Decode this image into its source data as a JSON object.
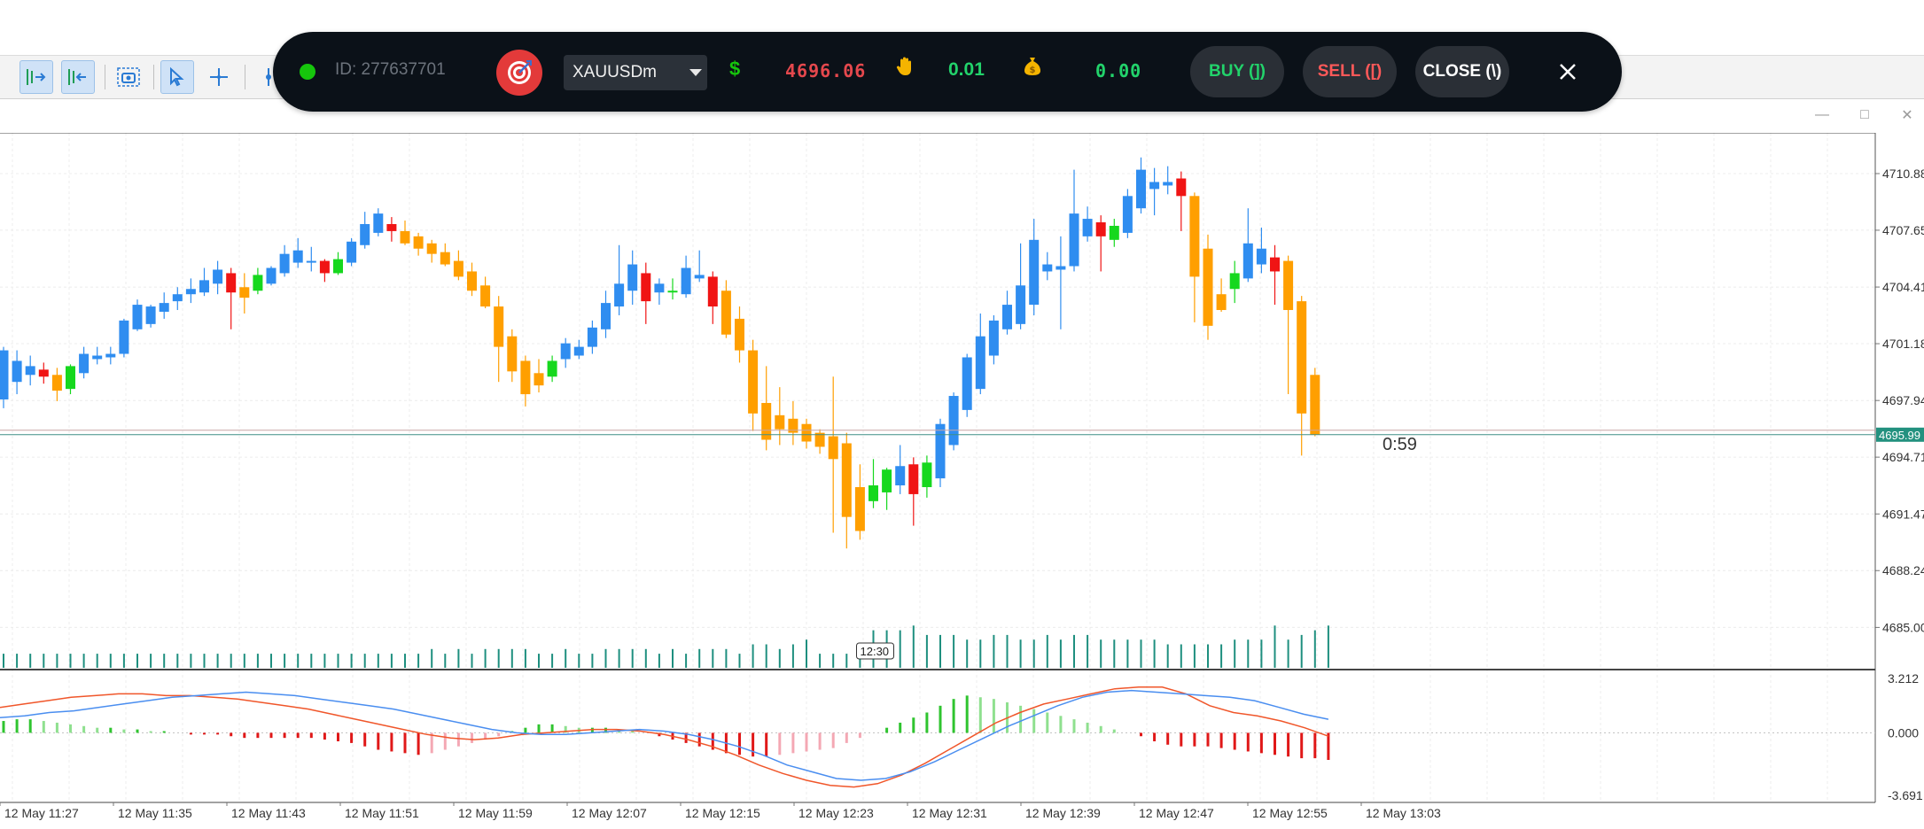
{
  "trade_panel": {
    "status_color": "#16c60c",
    "account_id": "ID: 277637701",
    "target_icon": "target-icon",
    "symbol": "XAUUSDm",
    "dollar_icon": "$",
    "price": "4696.06",
    "hand_icon": "hand-icon",
    "lot": "0.01",
    "bag_icon": "money-bag-icon",
    "profit": "0.00",
    "buy_label": "BUY (])",
    "sell_label": "SELL ([)",
    "close_label": "CLOSE (\\)",
    "close_icon": "close-icon"
  },
  "chart": {
    "price_axis_labels": [
      "4710.88",
      "4707.65",
      "4704.41",
      "4701.18",
      "4697.94",
      "4694.71",
      "4691.47",
      "4688.24",
      "4685.00"
    ],
    "current_price_label": "4695.99",
    "countdown": "0:59",
    "time_axis_labels": [
      "12 May 11:27",
      "12 May 11:35",
      "12 May 11:43",
      "12 May 11:51",
      "12 May 11:59",
      "12 May 12:07",
      "12 May 12:15",
      "12 May 12:23",
      "12 May 12:31",
      "12 May 12:39",
      "12 May 12:47",
      "12 May 12:55",
      "12 May 13:03"
    ],
    "crosshair_time_label": "12:30",
    "oscillator_labels": [
      "3.212",
      "0.000",
      "-3.691"
    ],
    "colors": {
      "bull": "#2f8df0",
      "bear": "#ff9f00",
      "bull_strong": "#16d81e",
      "bear_strong": "#f01414",
      "volume": "#1e8f7f",
      "signal_line": "#f0562a",
      "macd_line": "#4a8ef0"
    }
  },
  "chart_data": {
    "type": "candlestick",
    "ylim": [
      4683.0,
      4713.0
    ],
    "candles": [
      {
        "o": 4698.0,
        "h": 4701.0,
        "l": 4697.5,
        "c": 4700.8,
        "k": "b"
      },
      {
        "o": 4699.0,
        "h": 4700.8,
        "l": 4698.3,
        "c": 4700.2,
        "k": "b"
      },
      {
        "o": 4699.4,
        "h": 4700.5,
        "l": 4698.8,
        "c": 4699.9,
        "k": "b"
      },
      {
        "o": 4699.7,
        "h": 4700.1,
        "l": 4698.9,
        "c": 4699.3,
        "k": "S"
      },
      {
        "o": 4699.4,
        "h": 4699.8,
        "l": 4697.9,
        "c": 4698.5,
        "k": "o"
      },
      {
        "o": 4698.6,
        "h": 4700.0,
        "l": 4698.3,
        "c": 4699.9,
        "k": "G"
      },
      {
        "o": 4699.5,
        "h": 4701.0,
        "l": 4699.2,
        "c": 4700.6,
        "k": "b"
      },
      {
        "o": 4700.5,
        "h": 4701.0,
        "l": 4700.0,
        "c": 4700.3,
        "k": "b"
      },
      {
        "o": 4700.4,
        "h": 4701.0,
        "l": 4700.0,
        "c": 4700.6,
        "k": "b"
      },
      {
        "o": 4700.6,
        "h": 4702.6,
        "l": 4700.4,
        "c": 4702.5,
        "k": "b"
      },
      {
        "o": 4702.0,
        "h": 4703.7,
        "l": 4701.9,
        "c": 4703.4,
        "k": "b"
      },
      {
        "o": 4702.3,
        "h": 4703.4,
        "l": 4702.1,
        "c": 4703.3,
        "k": "b"
      },
      {
        "o": 4703.0,
        "h": 4704.1,
        "l": 4702.6,
        "c": 4703.5,
        "k": "b"
      },
      {
        "o": 4703.6,
        "h": 4704.4,
        "l": 4703.1,
        "c": 4704.0,
        "k": "b"
      },
      {
        "o": 4704.0,
        "h": 4704.9,
        "l": 4703.5,
        "c": 4704.3,
        "k": "b"
      },
      {
        "o": 4704.1,
        "h": 4705.5,
        "l": 4703.9,
        "c": 4704.8,
        "k": "b"
      },
      {
        "o": 4704.6,
        "h": 4705.9,
        "l": 4704.0,
        "c": 4705.4,
        "k": "b"
      },
      {
        "o": 4705.2,
        "h": 4705.5,
        "l": 4702.0,
        "c": 4704.1,
        "k": "S"
      },
      {
        "o": 4704.4,
        "h": 4705.2,
        "l": 4702.9,
        "c": 4703.8,
        "k": "o"
      },
      {
        "o": 4704.2,
        "h": 4705.5,
        "l": 4704.0,
        "c": 4705.1,
        "k": "G"
      },
      {
        "o": 4704.6,
        "h": 4705.6,
        "l": 4704.5,
        "c": 4705.5,
        "k": "b"
      },
      {
        "o": 4705.2,
        "h": 4706.8,
        "l": 4705.0,
        "c": 4706.3,
        "k": "b"
      },
      {
        "o": 4705.8,
        "h": 4707.2,
        "l": 4705.5,
        "c": 4706.5,
        "k": "b"
      },
      {
        "o": 4705.9,
        "h": 4706.7,
        "l": 4705.3,
        "c": 4705.9,
        "k": "b"
      },
      {
        "o": 4705.9,
        "h": 4706.0,
        "l": 4704.7,
        "c": 4705.2,
        "k": "S"
      },
      {
        "o": 4705.2,
        "h": 4706.4,
        "l": 4705.1,
        "c": 4706.0,
        "k": "G"
      },
      {
        "o": 4705.8,
        "h": 4707.2,
        "l": 4705.6,
        "c": 4707.0,
        "k": "b"
      },
      {
        "o": 4706.8,
        "h": 4708.7,
        "l": 4706.6,
        "c": 4708.0,
        "k": "b"
      },
      {
        "o": 4707.5,
        "h": 4708.9,
        "l": 4707.3,
        "c": 4708.6,
        "k": "b"
      },
      {
        "o": 4708.0,
        "h": 4708.4,
        "l": 4707.0,
        "c": 4707.6,
        "k": "S"
      },
      {
        "o": 4707.6,
        "h": 4708.2,
        "l": 4706.8,
        "c": 4706.9,
        "k": "o"
      },
      {
        "o": 4707.3,
        "h": 4707.5,
        "l": 4706.2,
        "c": 4706.6,
        "k": "o"
      },
      {
        "o": 4706.9,
        "h": 4707.1,
        "l": 4705.8,
        "c": 4706.3,
        "k": "o"
      },
      {
        "o": 4706.4,
        "h": 4706.9,
        "l": 4705.6,
        "c": 4705.7,
        "k": "o"
      },
      {
        "o": 4705.9,
        "h": 4706.5,
        "l": 4704.8,
        "c": 4705.0,
        "k": "o"
      },
      {
        "o": 4705.3,
        "h": 4705.8,
        "l": 4703.9,
        "c": 4704.2,
        "k": "o"
      },
      {
        "o": 4704.5,
        "h": 4705.0,
        "l": 4703.2,
        "c": 4703.3,
        "k": "o"
      },
      {
        "o": 4703.3,
        "h": 4703.9,
        "l": 4699.0,
        "c": 4701.0,
        "k": "o"
      },
      {
        "o": 4701.6,
        "h": 4702.0,
        "l": 4699.0,
        "c": 4699.6,
        "k": "o"
      },
      {
        "o": 4700.2,
        "h": 4700.5,
        "l": 4697.6,
        "c": 4698.3,
        "k": "o"
      },
      {
        "o": 4699.5,
        "h": 4700.3,
        "l": 4698.4,
        "c": 4698.8,
        "k": "o"
      },
      {
        "o": 4699.3,
        "h": 4700.5,
        "l": 4699.0,
        "c": 4700.2,
        "k": "G"
      },
      {
        "o": 4700.3,
        "h": 4701.5,
        "l": 4699.8,
        "c": 4701.2,
        "k": "b"
      },
      {
        "o": 4700.5,
        "h": 4701.4,
        "l": 4700.3,
        "c": 4701.0,
        "k": "b"
      },
      {
        "o": 4701.0,
        "h": 4702.5,
        "l": 4700.6,
        "c": 4702.1,
        "k": "b"
      },
      {
        "o": 4702.0,
        "h": 4704.2,
        "l": 4701.5,
        "c": 4703.5,
        "k": "b"
      },
      {
        "o": 4703.3,
        "h": 4706.8,
        "l": 4702.8,
        "c": 4704.6,
        "k": "b"
      },
      {
        "o": 4704.2,
        "h": 4706.5,
        "l": 4703.4,
        "c": 4705.7,
        "k": "b"
      },
      {
        "o": 4705.2,
        "h": 4705.8,
        "l": 4702.3,
        "c": 4703.6,
        "k": "S"
      },
      {
        "o": 4704.1,
        "h": 4704.9,
        "l": 4703.4,
        "c": 4704.6,
        "k": "b"
      },
      {
        "o": 4704.2,
        "h": 4704.9,
        "l": 4703.7,
        "c": 4704.2,
        "k": "G"
      },
      {
        "o": 4704.0,
        "h": 4706.2,
        "l": 4703.8,
        "c": 4705.5,
        "k": "b"
      },
      {
        "o": 4704.9,
        "h": 4706.5,
        "l": 4704.7,
        "c": 4705.1,
        "k": "b"
      },
      {
        "o": 4705.0,
        "h": 4705.3,
        "l": 4702.3,
        "c": 4703.3,
        "k": "S"
      },
      {
        "o": 4704.2,
        "h": 4704.8,
        "l": 4701.5,
        "c": 4701.7,
        "k": "o"
      },
      {
        "o": 4702.6,
        "h": 4703.3,
        "l": 4700.1,
        "c": 4700.8,
        "k": "o"
      },
      {
        "o": 4700.8,
        "h": 4701.4,
        "l": 4696.2,
        "c": 4697.2,
        "k": "o"
      },
      {
        "o": 4697.8,
        "h": 4699.9,
        "l": 4695.1,
        "c": 4695.7,
        "k": "o"
      },
      {
        "o": 4697.1,
        "h": 4698.7,
        "l": 4695.4,
        "c": 4696.3,
        "k": "o"
      },
      {
        "o": 4696.9,
        "h": 4697.9,
        "l": 4695.4,
        "c": 4696.1,
        "k": "o"
      },
      {
        "o": 4696.6,
        "h": 4696.9,
        "l": 4695.2,
        "c": 4695.6,
        "k": "o"
      },
      {
        "o": 4696.1,
        "h": 4696.3,
        "l": 4694.9,
        "c": 4695.3,
        "k": "o"
      },
      {
        "o": 4695.9,
        "h": 4699.3,
        "l": 4690.4,
        "c": 4694.6,
        "k": "o"
      },
      {
        "o": 4695.5,
        "h": 4696.1,
        "l": 4689.5,
        "c": 4691.3,
        "k": "o"
      },
      {
        "o": 4693.0,
        "h": 4694.3,
        "l": 4690.0,
        "c": 4690.5,
        "k": "o"
      },
      {
        "o": 4692.2,
        "h": 4694.6,
        "l": 4691.8,
        "c": 4693.1,
        "k": "G"
      },
      {
        "o": 4692.7,
        "h": 4694.1,
        "l": 4691.7,
        "c": 4694.0,
        "k": "G"
      },
      {
        "o": 4693.1,
        "h": 4695.4,
        "l": 4692.6,
        "c": 4694.2,
        "k": "b"
      },
      {
        "o": 4694.3,
        "h": 4694.7,
        "l": 4690.8,
        "c": 4692.6,
        "k": "S"
      },
      {
        "o": 4693.0,
        "h": 4694.8,
        "l": 4692.4,
        "c": 4694.4,
        "k": "G"
      },
      {
        "o": 4693.5,
        "h": 4696.9,
        "l": 4693.0,
        "c": 4696.6,
        "k": "b"
      },
      {
        "o": 4695.4,
        "h": 4698.4,
        "l": 4695.1,
        "c": 4698.2,
        "k": "b"
      },
      {
        "o": 4697.4,
        "h": 4700.6,
        "l": 4697.0,
        "c": 4700.4,
        "k": "b"
      },
      {
        "o": 4698.6,
        "h": 4702.9,
        "l": 4698.3,
        "c": 4701.6,
        "k": "b"
      },
      {
        "o": 4700.5,
        "h": 4702.8,
        "l": 4700.0,
        "c": 4702.5,
        "k": "b"
      },
      {
        "o": 4702.0,
        "h": 4704.2,
        "l": 4701.7,
        "c": 4703.4,
        "k": "b"
      },
      {
        "o": 4702.3,
        "h": 4706.9,
        "l": 4702.0,
        "c": 4704.5,
        "k": "b"
      },
      {
        "o": 4703.4,
        "h": 4708.3,
        "l": 4702.8,
        "c": 4707.1,
        "k": "b"
      },
      {
        "o": 4705.3,
        "h": 4706.4,
        "l": 4704.8,
        "c": 4705.7,
        "k": "b"
      },
      {
        "o": 4705.4,
        "h": 4707.3,
        "l": 4702.0,
        "c": 4705.6,
        "k": "b"
      },
      {
        "o": 4705.6,
        "h": 4711.1,
        "l": 4705.3,
        "c": 4708.6,
        "k": "b"
      },
      {
        "o": 4707.3,
        "h": 4709.0,
        "l": 4707.0,
        "c": 4708.3,
        "k": "b"
      },
      {
        "o": 4708.1,
        "h": 4708.5,
        "l": 4705.3,
        "c": 4707.3,
        "k": "S"
      },
      {
        "o": 4707.1,
        "h": 4708.3,
        "l": 4706.7,
        "c": 4707.9,
        "k": "G"
      },
      {
        "o": 4707.5,
        "h": 4710.0,
        "l": 4707.2,
        "c": 4709.6,
        "k": "b"
      },
      {
        "o": 4708.9,
        "h": 4711.8,
        "l": 4708.6,
        "c": 4711.1,
        "k": "b"
      },
      {
        "o": 4710.0,
        "h": 4711.2,
        "l": 4708.5,
        "c": 4710.4,
        "k": "b"
      },
      {
        "o": 4710.4,
        "h": 4711.3,
        "l": 4709.7,
        "c": 4710.2,
        "k": "b"
      },
      {
        "o": 4710.6,
        "h": 4711.0,
        "l": 4707.6,
        "c": 4709.6,
        "k": "S"
      },
      {
        "o": 4709.6,
        "h": 4709.8,
        "l": 4702.4,
        "c": 4705.0,
        "k": "o"
      },
      {
        "o": 4706.6,
        "h": 4707.4,
        "l": 4701.4,
        "c": 4702.2,
        "k": "o"
      },
      {
        "o": 4704.0,
        "h": 4704.9,
        "l": 4703.0,
        "c": 4703.1,
        "k": "o"
      },
      {
        "o": 4704.3,
        "h": 4705.9,
        "l": 4703.5,
        "c": 4705.2,
        "k": "G"
      },
      {
        "o": 4704.9,
        "h": 4708.9,
        "l": 4704.7,
        "c": 4706.9,
        "k": "b"
      },
      {
        "o": 4705.7,
        "h": 4707.8,
        "l": 4705.2,
        "c": 4706.6,
        "k": "b"
      },
      {
        "o": 4706.1,
        "h": 4706.8,
        "l": 4703.4,
        "c": 4705.3,
        "k": "S"
      },
      {
        "o": 4705.9,
        "h": 4706.2,
        "l": 4698.3,
        "c": 4703.1,
        "k": "o"
      },
      {
        "o": 4703.6,
        "h": 4703.9,
        "l": 4694.8,
        "c": 4697.2,
        "k": "o"
      },
      {
        "o": 4699.4,
        "h": 4699.8,
        "l": 4695.9,
        "c": 4696.0,
        "k": "o"
      }
    ],
    "volume": [
      3,
      3,
      3,
      3,
      3,
      3,
      3,
      3,
      3,
      3,
      3,
      3,
      3,
      3,
      3,
      3,
      3,
      3,
      3,
      3,
      3,
      3,
      3,
      3,
      3,
      3,
      3,
      3,
      3,
      3,
      3,
      3,
      4,
      3,
      4,
      3,
      4,
      4,
      4,
      4,
      3,
      3,
      4,
      3,
      3,
      4,
      4,
      4,
      4,
      3,
      4,
      3,
      4,
      4,
      4,
      3,
      5,
      5,
      4,
      5,
      6,
      3,
      3,
      3,
      4,
      8,
      8,
      8,
      9,
      7,
      7,
      7,
      6,
      6,
      7,
      7,
      6,
      6,
      7,
      6,
      7,
      7,
      6,
      6,
      6,
      6,
      6,
      5,
      5,
      5,
      5,
      5,
      6,
      6,
      6,
      9,
      6,
      7,
      8,
      9
    ],
    "oscillator": {
      "ylim": [
        -3.691,
        3.212
      ],
      "histogram": [
        0.7,
        0.8,
        0.8,
        0.7,
        0.6,
        0.5,
        0.4,
        0.3,
        0.3,
        0.2,
        0.2,
        0.1,
        0.1,
        0.0,
        -0.1,
        -0.1,
        -0.1,
        -0.2,
        -0.3,
        -0.3,
        -0.3,
        -0.3,
        -0.3,
        -0.3,
        -0.4,
        -0.5,
        -0.6,
        -0.8,
        -1.0,
        -1.1,
        -1.2,
        -1.3,
        -1.2,
        -1.0,
        -0.8,
        -0.6,
        -0.4,
        -0.2,
        0.1,
        0.3,
        0.5,
        0.5,
        0.4,
        0.3,
        0.3,
        0.3,
        0.2,
        0.1,
        0.0,
        -0.2,
        -0.4,
        -0.6,
        -0.8,
        -1.0,
        -1.2,
        -1.3,
        -1.4,
        -1.4,
        -1.3,
        -1.2,
        -1.1,
        -1.0,
        -0.9,
        -0.6,
        -0.3,
        0.0,
        0.3,
        0.6,
        0.9,
        1.2,
        1.6,
        2.0,
        2.2,
        2.1,
        2.0,
        1.8,
        1.6,
        1.4,
        1.2,
        1.0,
        0.8,
        0.6,
        0.4,
        0.2,
        0.0,
        -0.2,
        -0.5,
        -0.7,
        -0.8,
        -0.8,
        -0.8,
        -0.9,
        -1.0,
        -1.1,
        -1.2,
        -1.3,
        -1.4,
        -1.5,
        -1.5,
        -1.6
      ],
      "signal": [
        1.5,
        1.7,
        1.9,
        2.1,
        2.2,
        2.3,
        2.3,
        2.2,
        2.2,
        2.1,
        2.0,
        1.8,
        1.6,
        1.4,
        1.1,
        0.8,
        0.5,
        0.2,
        -0.1,
        -0.3,
        -0.4,
        -0.3,
        -0.1,
        0.0,
        0.1,
        0.2,
        0.2,
        0.1,
        -0.1,
        -0.4,
        -0.8,
        -1.3,
        -1.9,
        -2.4,
        -2.8,
        -3.1,
        -3.2,
        -3.0,
        -2.5,
        -1.8,
        -1.0,
        -0.2,
        0.6,
        1.2,
        1.7,
        2.0,
        2.3,
        2.6,
        2.7,
        2.7,
        2.3,
        1.6,
        1.2,
        1.0,
        0.7,
        0.3,
        -0.2
      ],
      "macd": [
        0.9,
        1.0,
        1.2,
        1.3,
        1.5,
        1.7,
        1.9,
        2.1,
        2.2,
        2.3,
        2.4,
        2.3,
        2.2,
        2.0,
        1.8,
        1.6,
        1.4,
        1.1,
        0.8,
        0.5,
        0.2,
        0.0,
        -0.1,
        -0.1,
        0.0,
        0.1,
        0.2,
        0.1,
        -0.1,
        -0.4,
        -0.8,
        -1.3,
        -1.9,
        -2.3,
        -2.7,
        -2.8,
        -2.7,
        -2.3,
        -1.7,
        -1.0,
        -0.3,
        0.4,
        1.0,
        1.6,
        2.1,
        2.4,
        2.5,
        2.4,
        2.3,
        2.2,
        2.1,
        1.9,
        1.5,
        1.1,
        0.8
      ]
    }
  }
}
